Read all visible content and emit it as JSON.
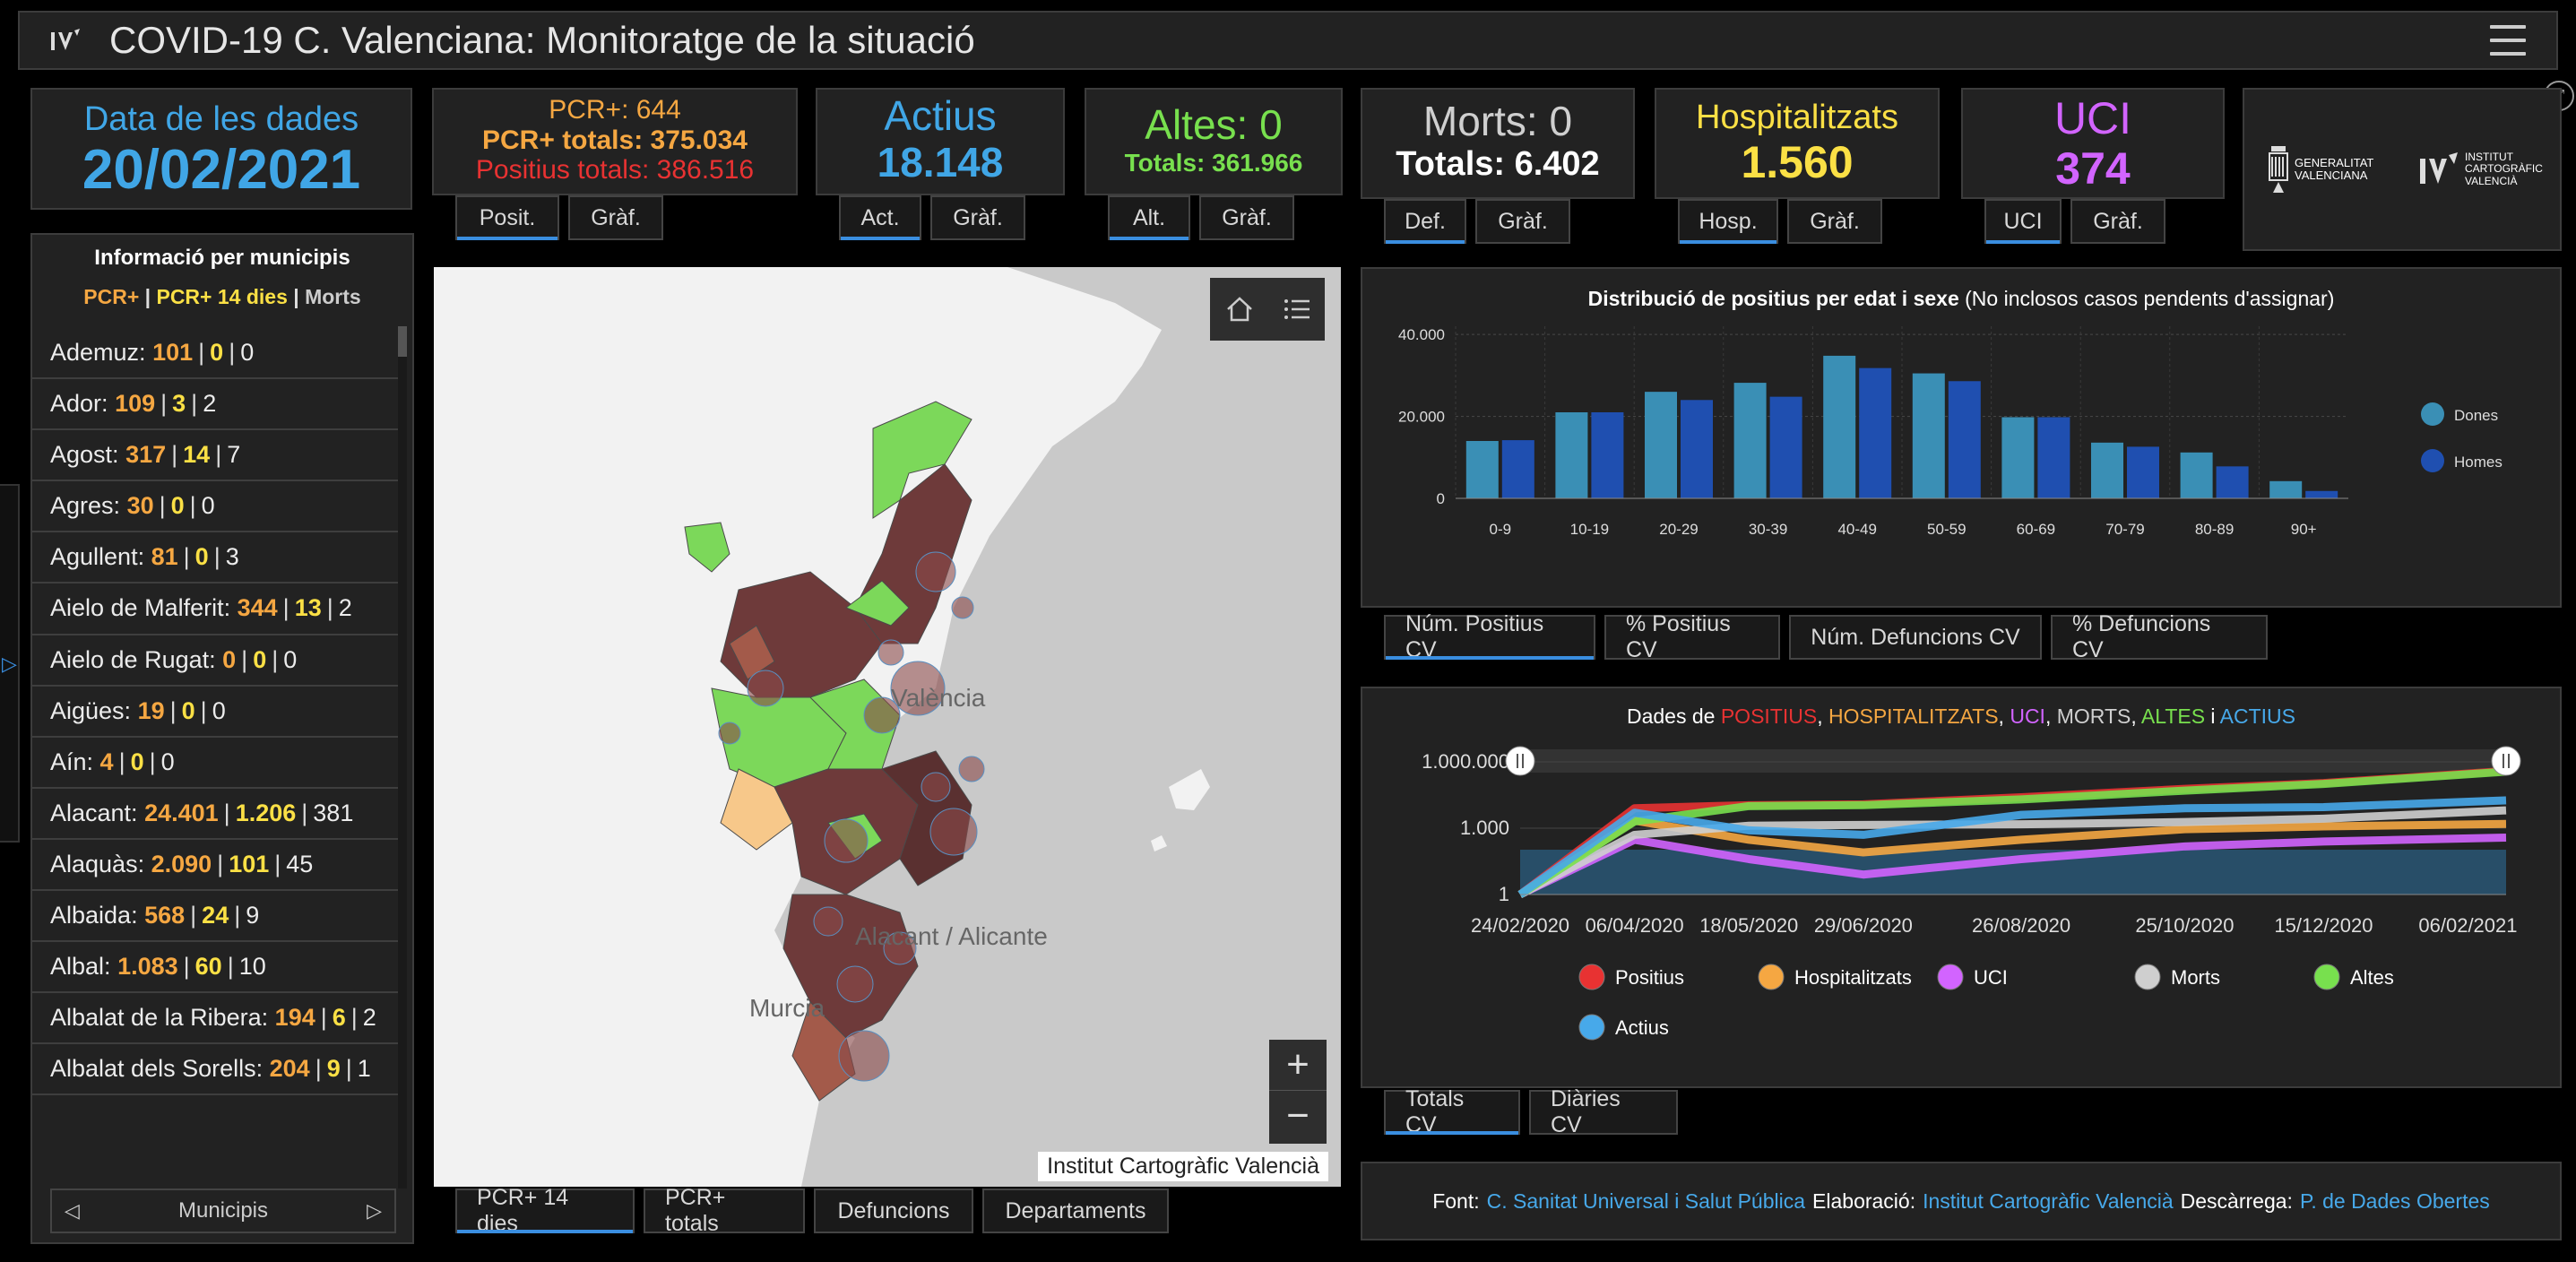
{
  "header": {
    "title": "COVID-19 C. Valenciana: Monitoratge de la situació"
  },
  "date_card": {
    "label": "Data de les dades",
    "value": "20/02/2021"
  },
  "pcr_card": {
    "line1": "PCR+: 644",
    "line2": "PCR+ totals: 375.034",
    "line3": "Positius totals: 386.516",
    "tabs": [
      "Posit.",
      "Gràf."
    ]
  },
  "actius_card": {
    "label": "Actius",
    "value": "18.148",
    "tabs": [
      "Act.",
      "Gràf."
    ]
  },
  "altes_card": {
    "label": "Altes: 0",
    "value": "Totals: 361.966",
    "tabs": [
      "Alt.",
      "Gràf."
    ]
  },
  "morts_card": {
    "label": "Morts: 0",
    "value": "Totals: 6.402",
    "tabs": [
      "Def.",
      "Gràf."
    ]
  },
  "hosp_card": {
    "label": "Hospitalitzats",
    "value": "1.560",
    "tabs": [
      "Hosp.",
      "Gràf."
    ]
  },
  "uci_card": {
    "label": "UCI",
    "value": "374",
    "tabs": [
      "UCI",
      "Gràf."
    ]
  },
  "logos": {
    "gva": "GENERALITAT VALENCIANA",
    "icv": "INSTITUT CARTOGRÀFIC VALENCIÀ"
  },
  "municipalities": {
    "title": "Informació per municipis",
    "legend_a": "PCR+",
    "legend_sep1": " | ",
    "legend_b": "PCR+ 14 dies",
    "legend_sep2": " | ",
    "legend_c": "Morts",
    "nav_label": "Municipis",
    "items": [
      {
        "name": "Ademuz:",
        "pcr": "101",
        "pcr14": "0",
        "morts": "0"
      },
      {
        "name": "Ador:",
        "pcr": "109",
        "pcr14": "3",
        "morts": "2"
      },
      {
        "name": "Agost:",
        "pcr": "317",
        "pcr14": "14",
        "morts": "7"
      },
      {
        "name": "Agres:",
        "pcr": "30",
        "pcr14": "0",
        "morts": "0"
      },
      {
        "name": "Agullent:",
        "pcr": "81",
        "pcr14": "0",
        "morts": "3"
      },
      {
        "name": "Aielo de Malferit:",
        "pcr": "344",
        "pcr14": "13",
        "morts": "2"
      },
      {
        "name": "Aielo de Rugat:",
        "pcr": "0",
        "pcr14": "0",
        "morts": "0"
      },
      {
        "name": "Aigües:",
        "pcr": "19",
        "pcr14": "0",
        "morts": "0"
      },
      {
        "name": "Aín:",
        "pcr": "4",
        "pcr14": "0",
        "morts": "0"
      },
      {
        "name": "Alacant:",
        "pcr": "24.401",
        "pcr14": "1.206",
        "morts": "381"
      },
      {
        "name": "Alaquàs:",
        "pcr": "2.090",
        "pcr14": "101",
        "morts": "45"
      },
      {
        "name": "Albaida:",
        "pcr": "568",
        "pcr14": "24",
        "morts": "9"
      },
      {
        "name": "Albal:",
        "pcr": "1.083",
        "pcr14": "60",
        "morts": "10"
      },
      {
        "name": "Albalat de la Ribera:",
        "pcr": "194",
        "pcr14": "6",
        "morts": "2"
      },
      {
        "name": "Albalat dels Sorells:",
        "pcr": "204",
        "pcr14": "9",
        "morts": "1"
      }
    ]
  },
  "map": {
    "labels": {
      "valencia": "València",
      "alacant": "Alacant / Alicante",
      "murcia": "Murcia"
    },
    "attribution": "Institut Cartogràfic Valencià",
    "zoom_in": "+",
    "zoom_out": "−",
    "tabs": [
      "PCR+ 14 dies",
      "PCR+ totals",
      "Defuncions",
      "Departaments"
    ]
  },
  "age_chart": {
    "title_bold": "Distribució de positius per edat i sexe",
    "title_rest": " (No inclosos casos pendents d'assignar)",
    "tabs": [
      "Núm. Positius CV",
      "% Positius CV",
      "Núm. Defuncions CV",
      "% Defuncions CV"
    ]
  },
  "timeline_chart": {
    "title_prefix": "Dades de ",
    "title_parts": [
      {
        "text": "POSITIUS",
        "color": "#e83232"
      },
      {
        "text": ", ",
        "color": "#ffffff"
      },
      {
        "text": "HOSPITALITZATS",
        "color": "#f5a742"
      },
      {
        "text": ", ",
        "color": "#ffffff"
      },
      {
        "text": "UCI",
        "color": "#d264ff"
      },
      {
        "text": ", ",
        "color": "#ffffff"
      },
      {
        "text": "MORTS",
        "color": "#cfcfcf"
      },
      {
        "text": ", ",
        "color": "#ffffff"
      },
      {
        "text": "ALTES",
        "color": "#78e04e"
      },
      {
        "text": " i ",
        "color": "#ffffff"
      },
      {
        "text": "ACTIUS",
        "color": "#47a9ea"
      }
    ],
    "tabs": [
      "Totals CV",
      "Diàries CV"
    ]
  },
  "footer": {
    "font_label": "Font:",
    "font_link": "C. Sanitat Universal i Salut Pública",
    "elab_label": "Elaboració:",
    "elab_link": "Institut Cartogràfic Valencià",
    "desc_label": "Descàrrega:",
    "desc_link": "P. de Dades Obertes"
  },
  "chart_data": [
    {
      "type": "bar",
      "title": "Distribució de positius per edat i sexe (No inclosos casos pendents d'assignar)",
      "categories": [
        "0-9",
        "10-19",
        "20-29",
        "30-39",
        "40-49",
        "50-59",
        "60-69",
        "70-79",
        "80-89",
        "90+"
      ],
      "series": [
        {
          "name": "Dones",
          "color": "#3a8fb5",
          "values": [
            14000,
            21000,
            26000,
            28200,
            34800,
            30500,
            19800,
            13600,
            11200,
            4200
          ]
        },
        {
          "name": "Homes",
          "color": "#1f4fb0",
          "values": [
            14200,
            21000,
            24000,
            24800,
            31800,
            28600,
            19800,
            12600,
            7800,
            1800
          ]
        }
      ],
      "yticks": [
        0,
        20000,
        40000
      ],
      "ytick_labels": [
        "0",
        "20.000",
        "40.000"
      ],
      "ylim": [
        0,
        42000
      ],
      "legend": "right",
      "grid": true
    },
    {
      "type": "line",
      "title": "Dades de POSITIUS, HOSPITALITZATS, UCI, MORTS, ALTES i ACTIUS",
      "y_scale": "log",
      "ylim": [
        1,
        1000000
      ],
      "yticks": [
        1,
        1000,
        1000000
      ],
      "ytick_labels": [
        "1",
        "1.000",
        "1.000.000"
      ],
      "x_tick_labels": [
        "24/02/2020",
        "06/04/2020",
        "18/05/2020",
        "29/06/2020",
        "26/08/2020",
        "25/10/2020",
        "15/12/2020",
        "06/02/2021"
      ],
      "series": [
        {
          "name": "Positius",
          "color": "#e83232",
          "x": [
            "24/02/2020",
            "06/04/2020",
            "18/05/2020",
            "29/06/2020",
            "26/08/2020",
            "25/10/2020",
            "15/12/2020",
            "20/02/2021"
          ],
          "values": [
            1,
            8000,
            11000,
            12000,
            25000,
            60000,
            110000,
            386516
          ]
        },
        {
          "name": "Hospitalitzats",
          "color": "#f5a742",
          "x": [
            "24/02/2020",
            "06/04/2020",
            "18/05/2020",
            "29/06/2020",
            "26/08/2020",
            "25/10/2020",
            "15/12/2020",
            "20/02/2021"
          ],
          "values": [
            1,
            2200,
            300,
            80,
            300,
            900,
            1200,
            1560
          ]
        },
        {
          "name": "UCI",
          "color": "#d264ff",
          "x": [
            "24/02/2020",
            "06/04/2020",
            "18/05/2020",
            "29/06/2020",
            "26/08/2020",
            "25/10/2020",
            "15/12/2020",
            "20/02/2021"
          ],
          "values": [
            1,
            300,
            40,
            8,
            40,
            150,
            250,
            374
          ]
        },
        {
          "name": "Morts",
          "color": "#cfcfcf",
          "x": [
            "24/02/2020",
            "06/04/2020",
            "18/05/2020",
            "29/06/2020",
            "26/08/2020",
            "25/10/2020",
            "15/12/2020",
            "20/02/2021"
          ],
          "values": [
            1,
            500,
            1300,
            1400,
            1500,
            1900,
            2700,
            6402
          ]
        },
        {
          "name": "Altes",
          "color": "#78e04e",
          "x": [
            "24/02/2020",
            "06/04/2020",
            "18/05/2020",
            "29/06/2020",
            "26/08/2020",
            "25/10/2020",
            "15/12/2020",
            "20/02/2021"
          ],
          "values": [
            1,
            2000,
            10000,
            11000,
            20000,
            50000,
            100000,
            361966
          ]
        },
        {
          "name": "Actius",
          "color": "#47a9ea",
          "x": [
            "24/02/2020",
            "06/04/2020",
            "18/05/2020",
            "29/06/2020",
            "26/08/2020",
            "25/10/2020",
            "15/12/2020",
            "20/02/2021"
          ],
          "values": [
            1,
            5000,
            800,
            500,
            4000,
            8000,
            9000,
            18148
          ]
        }
      ],
      "legend": "bottom"
    }
  ]
}
